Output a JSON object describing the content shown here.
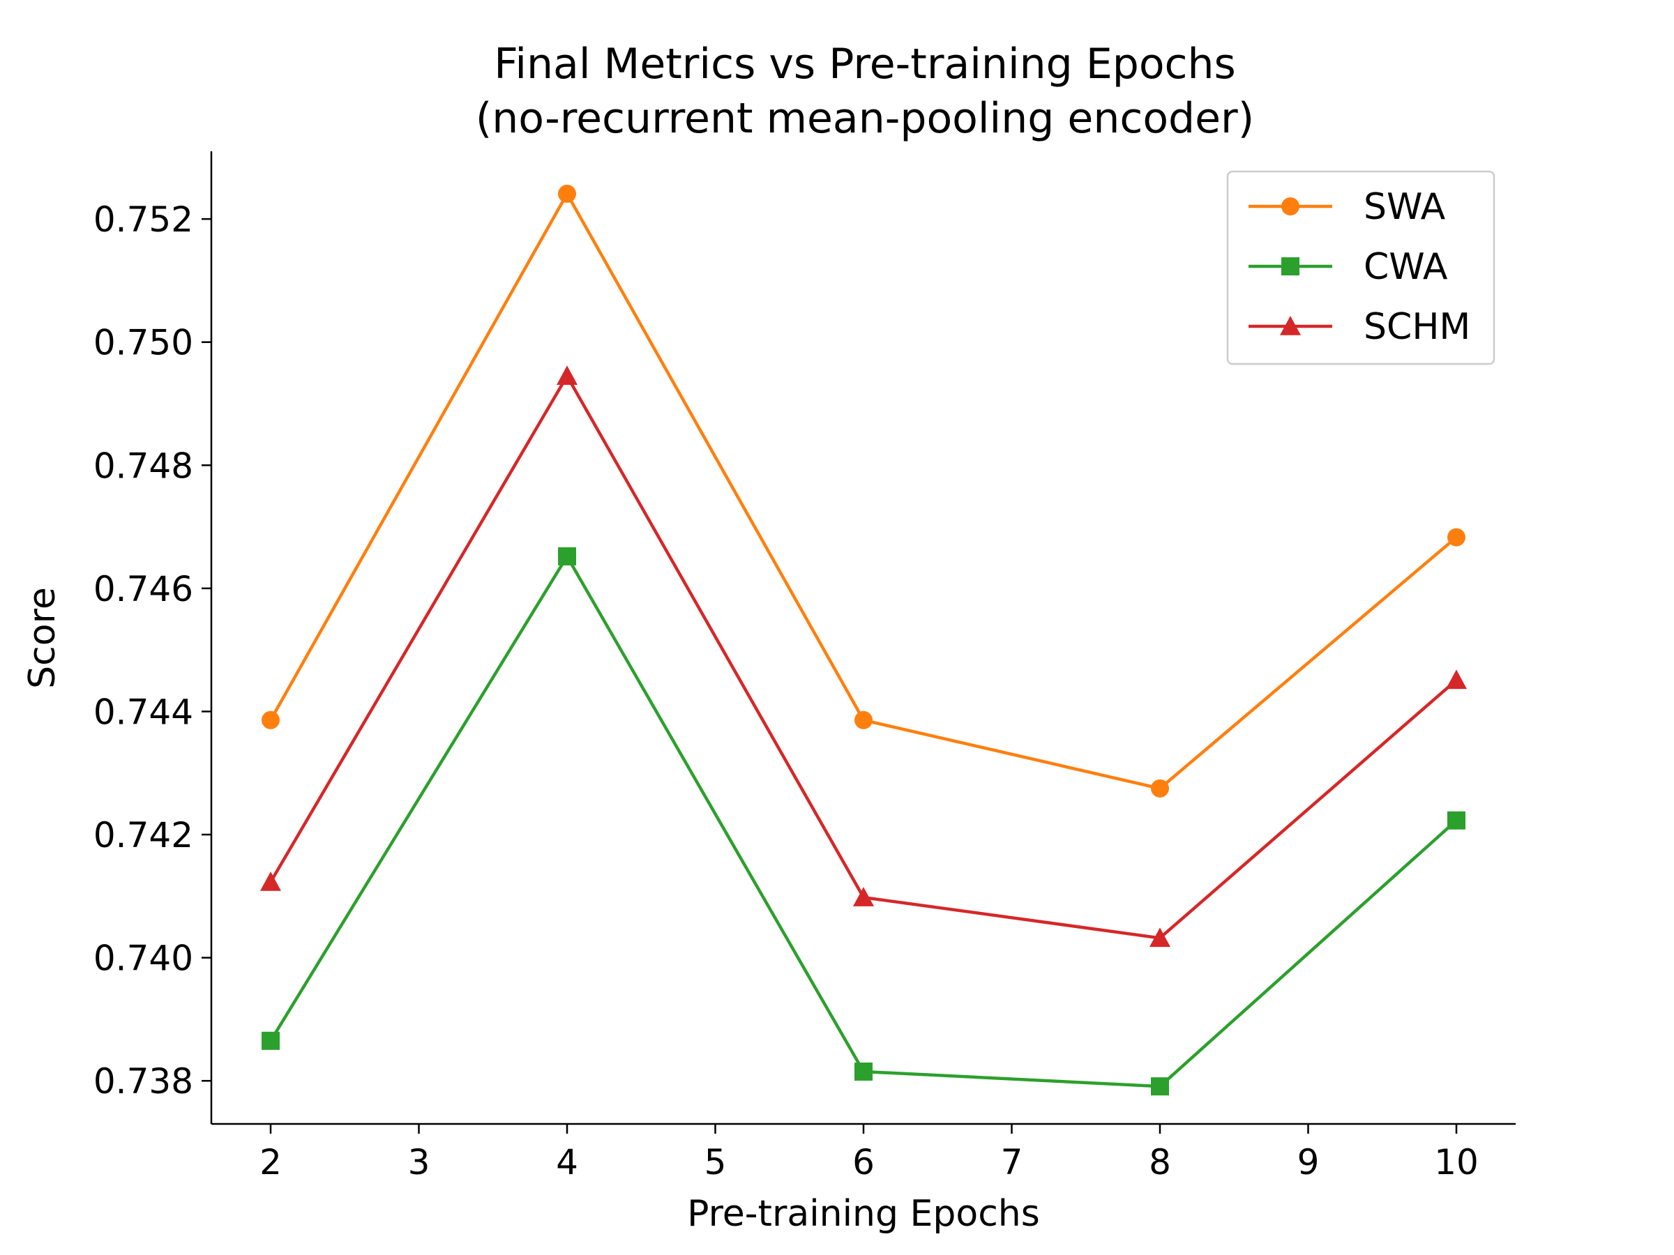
{
  "chart_data": {
    "type": "line",
    "title": "Final Metrics vs Pre-training Epochs",
    "subtitle": "(no-recurrent mean-pooling encoder)",
    "xlabel": "Pre-training Epochs",
    "ylabel": "Score",
    "x": [
      2,
      4,
      6,
      8,
      10
    ],
    "xticks": [
      "2",
      "3",
      "4",
      "5",
      "6",
      "7",
      "8",
      "9",
      "10"
    ],
    "xlim": [
      1.6,
      10.4
    ],
    "yticks": [
      "0.738",
      "0.740",
      "0.742",
      "0.744",
      "0.746",
      "0.748",
      "0.750",
      "0.752"
    ],
    "ylim": [
      0.7373,
      0.7531
    ],
    "grid": false,
    "legend_position": "top-right",
    "series": [
      {
        "name": "SWA",
        "color": "#ff7f0e",
        "marker": "circle",
        "values": [
          0.74386,
          0.75241,
          0.74386,
          0.74275,
          0.74683
        ]
      },
      {
        "name": "CWA",
        "color": "#2ca02c",
        "marker": "square",
        "values": [
          0.73865,
          0.74652,
          0.73815,
          0.73791,
          0.74223
        ]
      },
      {
        "name": "SCHM",
        "color": "#d62728",
        "marker": "triangle",
        "values": [
          0.74123,
          0.74945,
          0.74098,
          0.74032,
          0.74451
        ]
      }
    ]
  }
}
